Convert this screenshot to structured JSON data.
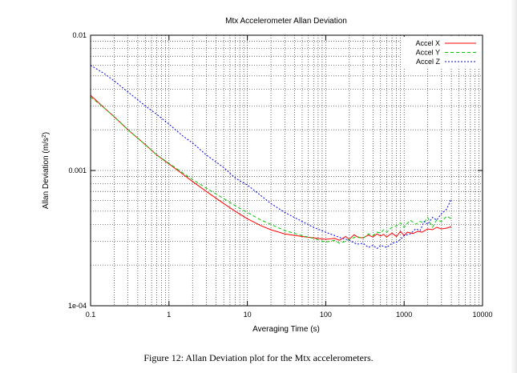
{
  "chart_data": {
    "type": "line",
    "title": "Mtx Accelerometer Allan Deviation",
    "xlabel": "Averaging Time (s)",
    "ylabel_main": "Allan Deviation (m/s",
    "ylabel_sup": "2",
    "ylabel_close": ")",
    "xscale": "log",
    "yscale": "log",
    "xlim": [
      0.1,
      10000
    ],
    "ylim": [
      0.0001,
      0.01
    ],
    "grid": true,
    "legend_position": "top-right",
    "x_ticks": [
      {
        "value": 0.1,
        "label": "0.1"
      },
      {
        "value": 1,
        "label": "1"
      },
      {
        "value": 10,
        "label": "10"
      },
      {
        "value": 100,
        "label": "100"
      },
      {
        "value": 1000,
        "label": "1000"
      },
      {
        "value": 10000,
        "label": "10000"
      }
    ],
    "y_ticks": [
      {
        "value": 0.0001,
        "label": "1e-04"
      },
      {
        "value": 0.001,
        "label": "0.001"
      },
      {
        "value": 0.01,
        "label": "0.01"
      }
    ],
    "series": [
      {
        "name": "Accel X",
        "color": "#ff0000",
        "dash": "solid",
        "x": [
          0.1,
          0.15,
          0.2,
          0.3,
          0.5,
          0.7,
          1,
          1.5,
          2,
          3,
          5,
          7,
          10,
          15,
          20,
          30,
          50,
          70,
          100,
          130,
          150,
          180,
          200,
          230,
          260,
          300,
          350,
          400,
          450,
          500,
          550,
          600,
          700,
          800,
          900,
          1000,
          1100,
          1300,
          1500,
          1700,
          2000,
          2300,
          2600,
          3000,
          3500,
          4000
        ],
        "y": [
          0.0036,
          0.0029,
          0.0025,
          0.002,
          0.00155,
          0.0013,
          0.00112,
          0.00094,
          0.00083,
          0.0007,
          0.00057,
          0.0005,
          0.00044,
          0.00039,
          0.000365,
          0.00034,
          0.000325,
          0.000318,
          0.00031,
          0.000315,
          0.000305,
          0.000325,
          0.00031,
          0.000335,
          0.00032,
          0.000318,
          0.000333,
          0.000322,
          0.00034,
          0.000328,
          0.000337,
          0.000322,
          0.000345,
          0.000325,
          0.000355,
          0.00033,
          0.00035,
          0.000342,
          0.000355,
          0.00035,
          0.00037,
          0.000365,
          0.00038,
          0.00037,
          0.000375,
          0.000385
        ]
      },
      {
        "name": "Accel Y",
        "color": "#00cc00",
        "dash": "4,3",
        "x": [
          0.1,
          0.15,
          0.2,
          0.3,
          0.5,
          0.7,
          1,
          1.5,
          2,
          3,
          5,
          7,
          10,
          15,
          20,
          30,
          50,
          70,
          100,
          130,
          150,
          180,
          200,
          250,
          300,
          350,
          400,
          450,
          500,
          550,
          600,
          700,
          800,
          900,
          1000,
          1200,
          1400,
          1600,
          1800,
          2000,
          2300,
          2600,
          3000,
          3500,
          4000
        ],
        "y": [
          0.0035,
          0.0029,
          0.0025,
          0.002,
          0.00155,
          0.0013,
          0.00113,
          0.00096,
          0.00086,
          0.00074,
          0.00062,
          0.00055,
          0.00049,
          0.00043,
          0.0004,
          0.00036,
          0.00033,
          0.000315,
          0.000295,
          0.000305,
          0.00029,
          0.0003,
          0.00031,
          0.000325,
          0.000315,
          0.00034,
          0.00033,
          0.00035,
          0.000345,
          0.000365,
          0.00035,
          0.00038,
          0.00039,
          0.00041,
          0.00038,
          0.00043,
          0.0004,
          0.00042,
          0.00041,
          0.00045,
          0.00038,
          0.00043,
          0.00042,
          0.00046,
          0.00044
        ]
      },
      {
        "name": "Accel Z",
        "color": "#0000ff",
        "dash": "2,2",
        "x": [
          0.1,
          0.15,
          0.2,
          0.3,
          0.5,
          0.7,
          1,
          1.5,
          2,
          3,
          5,
          7,
          10,
          15,
          20,
          30,
          50,
          70,
          100,
          150,
          200,
          250,
          300,
          350,
          400,
          450,
          500,
          600,
          700,
          800,
          900,
          1000,
          1200,
          1400,
          1600,
          1800,
          2000,
          2300,
          2600,
          3000,
          3500,
          4000
        ],
        "y": [
          0.006,
          0.0052,
          0.0046,
          0.0038,
          0.003,
          0.0026,
          0.0022,
          0.0018,
          0.0016,
          0.0013,
          0.00105,
          0.00088,
          0.00078,
          0.00065,
          0.00057,
          0.00049,
          0.00042,
          0.00038,
          0.00035,
          0.00032,
          0.000305,
          0.000285,
          0.00029,
          0.00027,
          0.00028,
          0.000265,
          0.00028,
          0.00027,
          0.00029,
          0.000295,
          0.00031,
          0.00033,
          0.00034,
          0.00037,
          0.00036,
          0.00042,
          0.0004,
          0.00045,
          0.00043,
          0.00048,
          0.00052,
          0.00062
        ]
      }
    ]
  },
  "caption": "Figure 12: Allan Deviation plot for the Mtx accelerometers."
}
